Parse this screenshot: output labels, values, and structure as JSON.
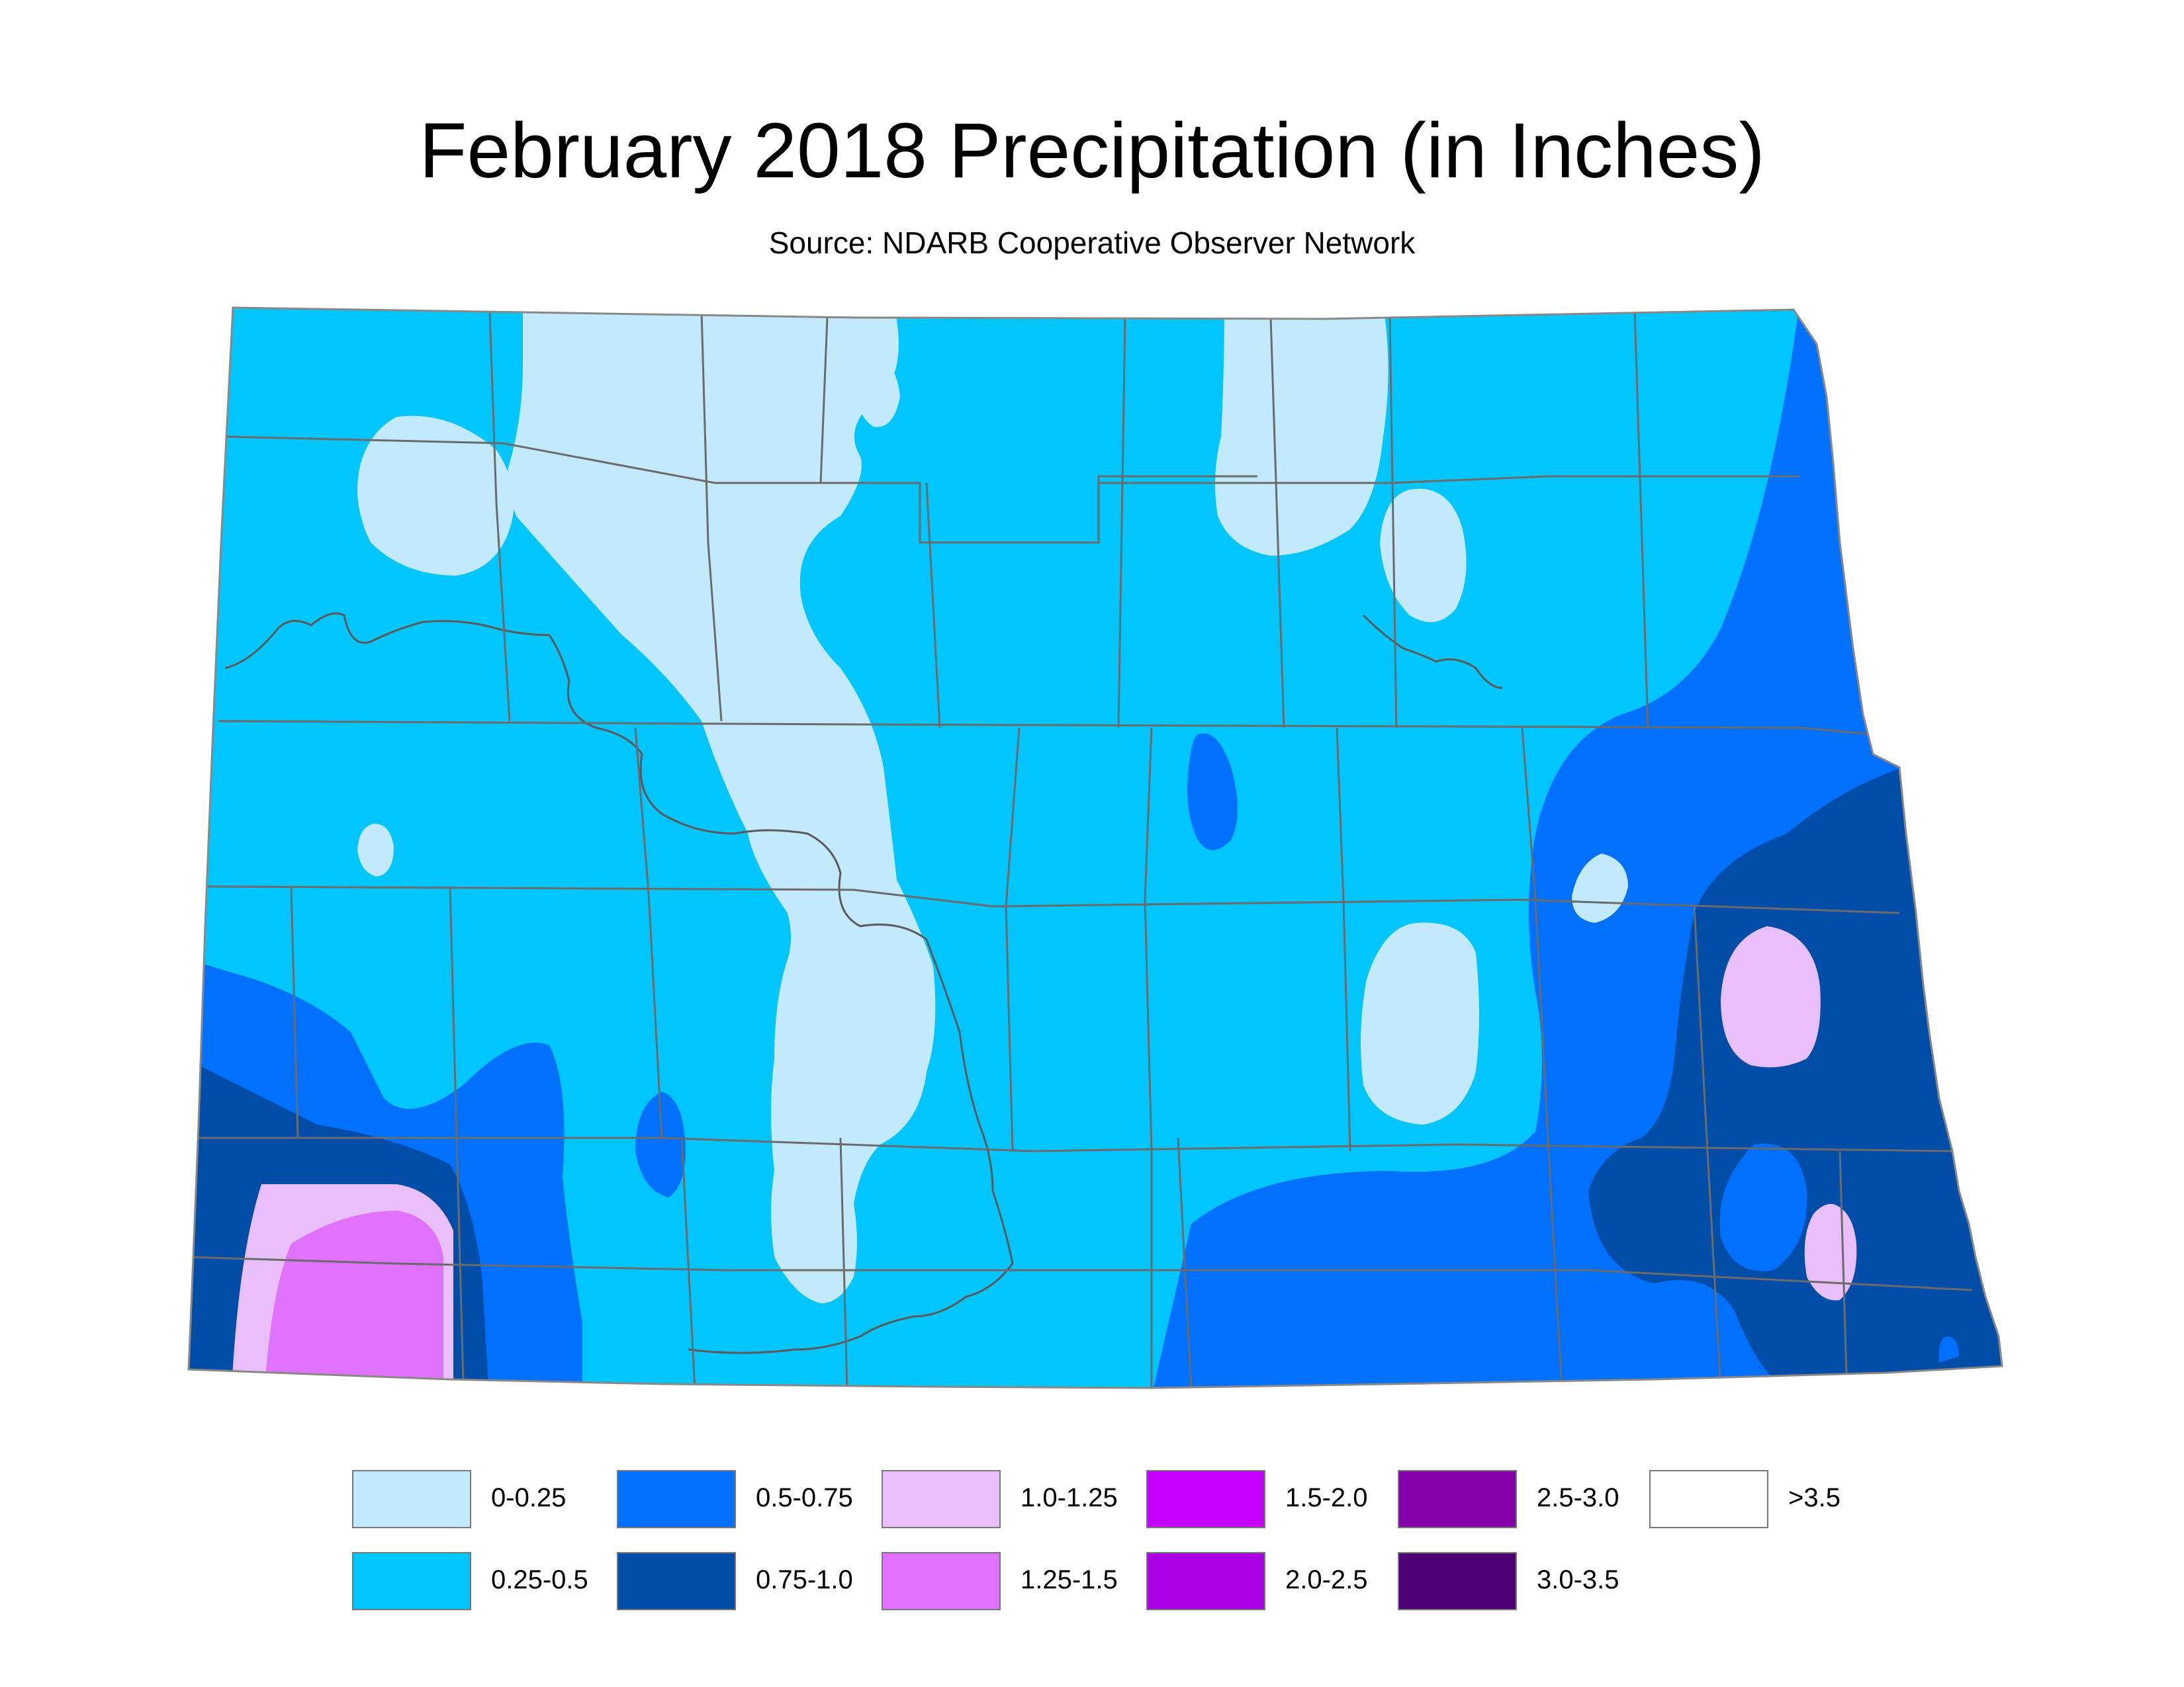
{
  "title": "February 2018 Precipitation (in Inches)",
  "subtitle": "Source: NDARB Cooperative Observer Network",
  "colors": {
    "background": "#ffffff",
    "county_line": "#6b6b6b",
    "river": "#5a5a5a"
  },
  "legend": [
    {
      "label": "0-0.25",
      "color": "#c2e9fc"
    },
    {
      "label": "0.25-0.5",
      "color": "#00c5ff"
    },
    {
      "label": "0.5-0.75",
      "color": "#0070ff"
    },
    {
      "label": "0.75-1.0",
      "color": "#004da8"
    },
    {
      "label": "1.0-1.25",
      "color": "#e8bffb"
    },
    {
      "label": "1.25-1.5",
      "color": "#df73ff"
    },
    {
      "label": "1.5-2.0",
      "color": "#c500ff"
    },
    {
      "label": "2.0-2.5",
      "color": "#a900e6"
    },
    {
      "label": ">3.5",
      "color": "#ffffff"
    },
    {
      "label": "2.5-3.0",
      "color": "#8400a8"
    },
    {
      "label": "3.0-3.5",
      "color": "#4c0073"
    }
  ]
}
